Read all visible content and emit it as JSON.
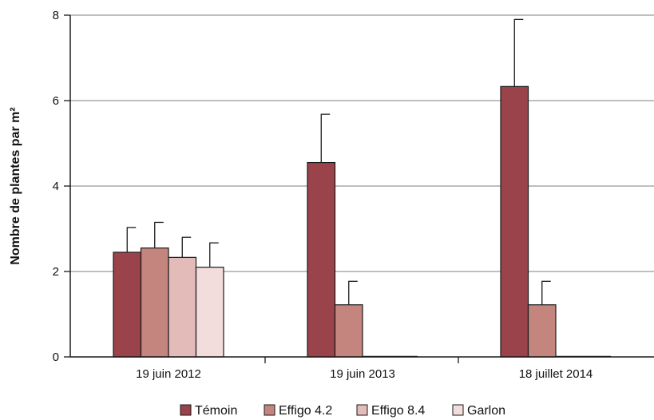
{
  "chart_data": {
    "type": "bar",
    "ylabel": "Nombre de plantes par m²",
    "xlabel": "",
    "ylim": [
      0,
      8
    ],
    "yticks": [
      0,
      2,
      4,
      6,
      8
    ],
    "grid": true,
    "legend_position": "bottom",
    "categories": [
      "19 juin 2012",
      "19 juin 2013",
      "18 juillet 2014"
    ],
    "series": [
      {
        "name": "Témoin",
        "color": "#9b434a",
        "values": [
          2.45,
          4.55,
          6.33
        ],
        "error": [
          0.58,
          1.13,
          1.57
        ]
      },
      {
        "name": "Effigo 4.2",
        "color": "#c4857f",
        "values": [
          2.55,
          1.22,
          1.22
        ],
        "error": [
          0.6,
          0.55,
          0.55
        ]
      },
      {
        "name": "Effigo 8.4",
        "color": "#e3bcba",
        "values": [
          2.33,
          0,
          0
        ],
        "error": [
          0.47,
          0,
          0
        ]
      },
      {
        "name": "Garlon",
        "color": "#f2dddc",
        "values": [
          2.1,
          0,
          0
        ],
        "error": [
          0.57,
          0,
          0
        ]
      }
    ]
  }
}
